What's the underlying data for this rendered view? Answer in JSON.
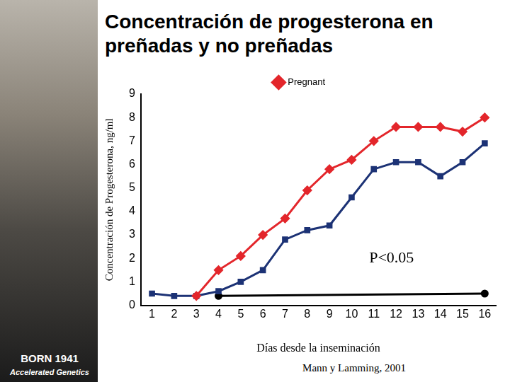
{
  "chart_data": {
    "type": "line",
    "title": "Concentración de progesterona en preñadas y no preñadas",
    "x_label": "Días desde la inseminación",
    "y_label": "Concentración de Progesterona, ng/ml",
    "x": [
      1,
      2,
      3,
      4,
      5,
      6,
      7,
      8,
      9,
      10,
      11,
      12,
      13,
      14,
      15,
      16
    ],
    "series": [
      {
        "name": "Pregnant",
        "color": "#e3262b",
        "marker": "diamond",
        "line_style": "solid",
        "values": [
          null,
          null,
          0.4,
          1.5,
          2.1,
          3.0,
          3.7,
          4.9,
          5.8,
          6.2,
          7.0,
          7.6,
          7.6,
          7.6,
          7.4,
          8.0
        ]
      },
      {
        "color": "#1c3275",
        "marker": "square",
        "line_style": "solid",
        "values": [
          0.5,
          0.4,
          0.4,
          0.6,
          1.0,
          1.5,
          2.8,
          3.2,
          3.4,
          4.6,
          5.8,
          6.1,
          6.1,
          5.5,
          6.1,
          6.9
        ]
      },
      {
        "color": "#000000",
        "marker": "circle",
        "line_style": "solid",
        "x": [
          4,
          16
        ],
        "values": [
          0.4,
          0.5
        ]
      }
    ],
    "xlim": [
      0.5,
      16.5
    ],
    "xticks": [
      1,
      2,
      3,
      4,
      5,
      6,
      7,
      8,
      9,
      10,
      11,
      12,
      13,
      14,
      15,
      16
    ],
    "ylim": [
      0,
      9
    ],
    "yticks": [
      0,
      1,
      2,
      3,
      4,
      5,
      6,
      7,
      8,
      9
    ],
    "grid": false,
    "legend": "top",
    "annotations": [
      {
        "text": "P<0.05",
        "x": 11.8,
        "y": 2
      }
    ],
    "source": "Mann y Lamming, 2001"
  },
  "logos": [
    "BORN 1941",
    "Accelerated Genetics"
  ]
}
